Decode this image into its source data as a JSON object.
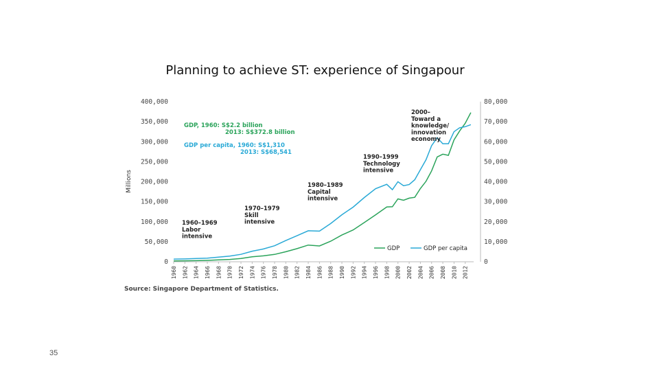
{
  "slide": {
    "title": "Planning to achieve ST: experience of Singapour",
    "page_number": "35"
  },
  "colors": {
    "gdp": "#2aa35a",
    "gdp_per_capita": "#29a9d6",
    "axis": "#bbbbbb"
  },
  "chart_data": {
    "type": "line",
    "ylabel": "Millions",
    "source": "Source: Singapore Department of Statistics.",
    "left_axis": {
      "ylim": [
        0,
        400000
      ],
      "ticks": [
        "0",
        "50,000",
        "100,000",
        "150,000",
        "200,000",
        "250,000",
        "300,000",
        "350,000",
        "400,000"
      ]
    },
    "right_axis": {
      "ylim": [
        0,
        80000
      ],
      "ticks": [
        "0",
        "10,000",
        "20,000",
        "30,000",
        "40,000",
        "50,000",
        "60,000",
        "70,000",
        "80,000"
      ]
    },
    "x_tick_labels": [
      "1960",
      "1962",
      "1964",
      "1966",
      "1968",
      "1970",
      "1972",
      "1974",
      "1976",
      "1978",
      "1980",
      "1982",
      "1984",
      "1986",
      "1988",
      "1990",
      "1992",
      "1994",
      "1996",
      "1998",
      "2000",
      "2002",
      "2004",
      "2006",
      "2008",
      "2010",
      "2012"
    ],
    "legend": {
      "position": "bottom-right"
    },
    "series": [
      {
        "name": "GDP",
        "axis": "left",
        "x": [
          1960,
          1962,
          1964,
          1966,
          1968,
          1970,
          1972,
          1974,
          1976,
          1978,
          1980,
          1982,
          1984,
          1986,
          1988,
          1990,
          1992,
          1994,
          1996,
          1998,
          1999,
          2000,
          2001,
          2002,
          2003,
          2004,
          2005,
          2006,
          2007,
          2008,
          2009,
          2010,
          2011,
          2012,
          2013
        ],
        "values": [
          2200,
          2400,
          2800,
          3500,
          4600,
          5800,
          8100,
          12500,
          14800,
          18300,
          25100,
          32800,
          41700,
          39500,
          51300,
          66800,
          79400,
          98000,
          117300,
          136900,
          137500,
          157000,
          153600,
          158900,
          161000,
          183000,
          201000,
          227000,
          262000,
          268800,
          266000,
          304500,
          326900,
          345900,
          372800
        ]
      },
      {
        "name": "GDP per capita",
        "axis": "right",
        "x": [
          1960,
          1962,
          1964,
          1966,
          1968,
          1970,
          1972,
          1974,
          1976,
          1978,
          1980,
          1982,
          1984,
          1986,
          1988,
          1990,
          1992,
          1994,
          1996,
          1998,
          1999,
          2000,
          2001,
          2002,
          2003,
          2004,
          2005,
          2006,
          2007,
          2008,
          2009,
          2010,
          2011,
          2012,
          2013
        ],
        "values": [
          1310,
          1400,
          1600,
          1800,
          2300,
          2800,
          3700,
          5300,
          6400,
          8000,
          10600,
          13000,
          15500,
          15300,
          19100,
          23500,
          27300,
          32100,
          36500,
          38700,
          36000,
          40000,
          38000,
          38600,
          41000,
          46000,
          51000,
          58000,
          62000,
          59000,
          59000,
          65000,
          67000,
          67500,
          68541
        ]
      }
    ],
    "annotations": [
      {
        "lines": [
          "GDP, 1960: S$2.2 billion",
          "2013: S$372.8 billion"
        ],
        "color": "green"
      },
      {
        "lines": [
          "GDP per capita, 1960: S$1,310",
          "2013: S$68,541"
        ],
        "color": "blue"
      },
      {
        "lines": [
          "1960–1969",
          "Labor",
          "intensive"
        ],
        "color": "dark"
      },
      {
        "lines": [
          "1970–1979",
          "Skill",
          "intensive"
        ],
        "color": "dark"
      },
      {
        "lines": [
          "1980–1989",
          "Capital",
          "intensive"
        ],
        "color": "dark"
      },
      {
        "lines": [
          "1990–1999",
          "Technology",
          "intensive"
        ],
        "color": "dark"
      },
      {
        "lines": [
          "2000–",
          "Toward a",
          "knowledge/",
          "innovation",
          "economy"
        ],
        "color": "dark"
      }
    ]
  }
}
